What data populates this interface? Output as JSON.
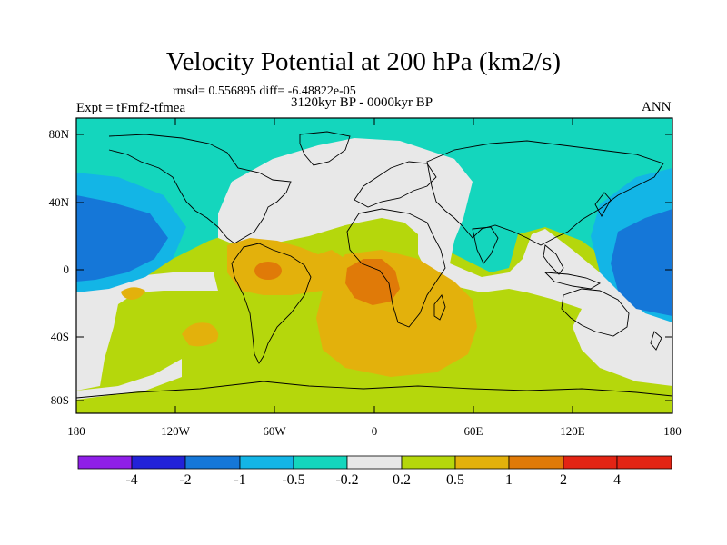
{
  "title": "Velocity Potential at 200 hPa (km2/s)",
  "stats": "rmsd= 0.556895 diff= -6.48822e-05",
  "experiment": "Expt = tFmf2-tfmea",
  "period": "3120kyr BP - 0000kyr BP",
  "season": "ANN",
  "lat_labels": [
    "80N",
    "40N",
    "0",
    "40S",
    "80S"
  ],
  "lon_labels": [
    "180",
    "120W",
    "60W",
    "0",
    "60E",
    "120E",
    "180"
  ],
  "colorbar": {
    "labels": [
      "-4",
      "-2",
      "-1",
      "-0.5",
      "-0.2",
      "0.2",
      "0.5",
      "1",
      "2",
      "4"
    ],
    "colors": [
      "#8f1fe8",
      "#2222d8",
      "#1577d8",
      "#13b5e6",
      "#14d6bd",
      "#e8e8e8",
      "#b5d70c",
      "#e3b10c",
      "#e07a08",
      "#e32414"
    ]
  },
  "colors": {
    "ocean_mid_green": "#b5d70c",
    "neutral": "#e8e8e8",
    "teal": "#14d6bd",
    "light_blue": "#13b5e6",
    "blue": "#1577d8",
    "orange": "#e3b10c",
    "dark_orange": "#e07a08"
  }
}
